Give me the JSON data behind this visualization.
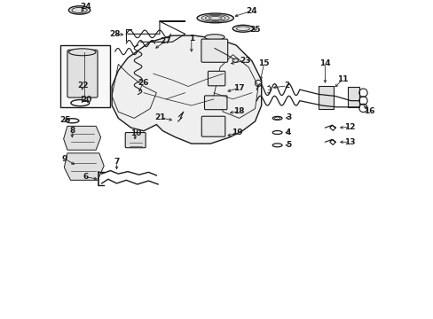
{
  "background_color": "#ffffff",
  "figsize": [
    4.89,
    3.6
  ],
  "dpi": 100,
  "lc": "#1a1a1a"
}
